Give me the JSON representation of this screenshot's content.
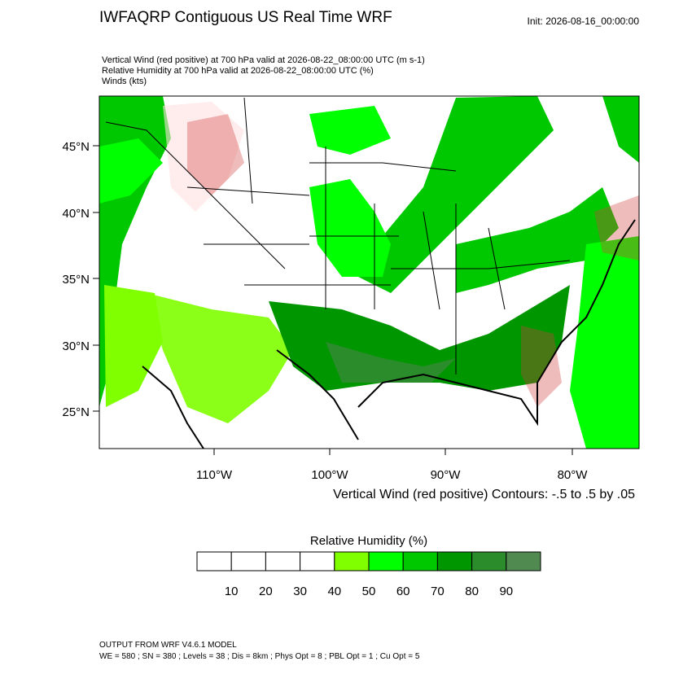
{
  "header": {
    "title": "IWFAQRP Contiguous US Real Time WRF",
    "init": "Init: 2026-08-16_00:00:00"
  },
  "fields": [
    "Vertical Wind (red positive) at 700 hPa valid at 2026-08-22_08:00:00 UTC   (m s-1)",
    "Relative Humidity at 700 hPa valid at 2026-08-22_08:00:00 UTC   (%)",
    "Winds   (kts)"
  ],
  "map": {
    "lat_labels": [
      "45°N",
      "40°N",
      "35°N",
      "30°N",
      "25°N"
    ],
    "lon_labels": [
      "110°W",
      "100°W",
      "90°W",
      "80°W"
    ],
    "contour_note": "Vertical Wind (red positive) Contours: -.5 to .5 by .05"
  },
  "colorbar": {
    "title": "Relative Humidity  (%)",
    "colors": [
      "#ffffff",
      "#ffffff",
      "#ffffff",
      "#ffffff",
      "#80ff00",
      "#00ff00",
      "#00c800",
      "#009600",
      "#2a8c2a",
      "#508a50"
    ],
    "labels": [
      "10",
      "20",
      "30",
      "40",
      "50",
      "60",
      "70",
      "80",
      "90"
    ]
  },
  "footer": [
    "OUTPUT FROM WRF V4.6.1 MODEL",
    "WE = 580 ; SN = 380 ; Levels = 38 ; Dis = 8km ; Phys Opt = 8 ; PBL Opt = 1 ; Cu Opt = 5"
  ]
}
